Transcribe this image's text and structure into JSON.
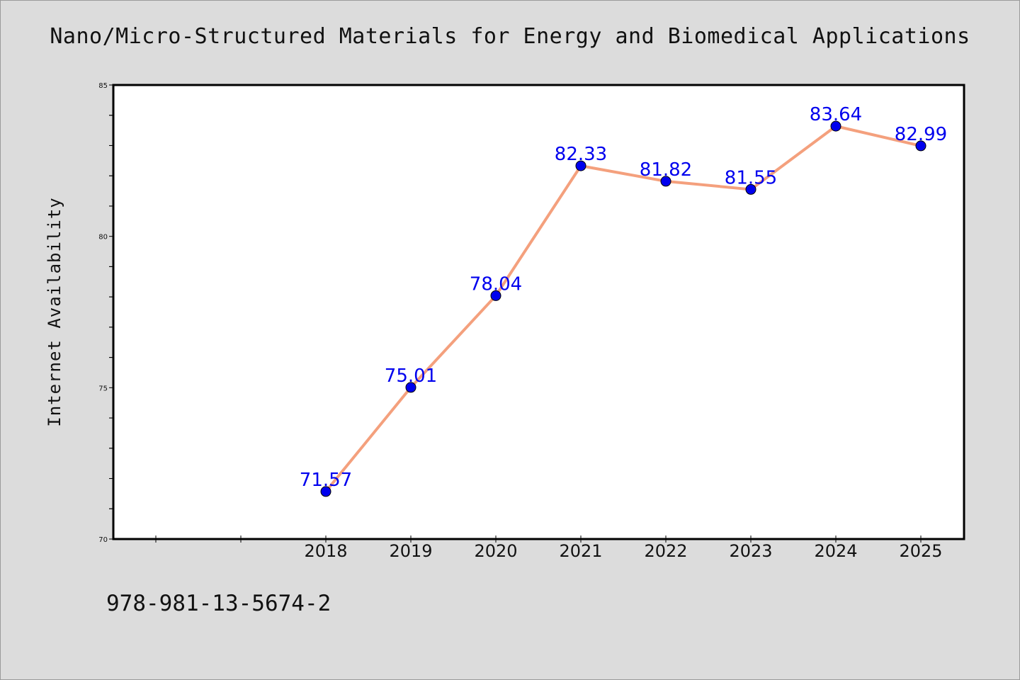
{
  "chart_data": {
    "type": "line",
    "title": "Nano/Micro-Structured Materials for Energy and Biomedical Applications",
    "xlabel": "",
    "ylabel": "Internet Availability",
    "categories": [
      "2018",
      "2019",
      "2020",
      "2021",
      "2022",
      "2023",
      "2024",
      "2025"
    ],
    "series": [
      {
        "values": [
          71.57,
          75.01,
          78.04,
          82.33,
          81.82,
          81.55,
          83.64,
          82.99
        ],
        "labels": [
          "71.57",
          "75.01",
          "78.04",
          "82.33",
          "81.82",
          "81.55",
          "83.64",
          "82.99"
        ],
        "line_color": "#f4a07d",
        "marker_color": "#0000ee",
        "label_color": "#0000ee"
      }
    ],
    "ylim": [
      70,
      85
    ],
    "yticks": [
      "70",
      "75",
      "80",
      "85"
    ],
    "grid": false,
    "legend": "none"
  },
  "footer": {
    "isbn": "978-981-13-5674-2"
  },
  "colors": {
    "background": "#dcdcdc",
    "plot_background": "#ffffff",
    "axes": "#000000"
  }
}
